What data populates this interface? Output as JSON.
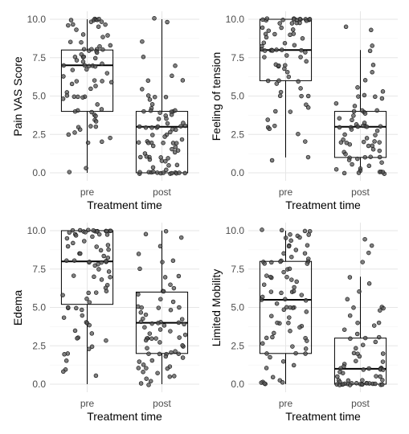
{
  "colors": {
    "background": "#ffffff",
    "grid_major": "#e6e6e6",
    "grid_minor": "#f2f2f2",
    "box_line": "#000000",
    "point_fill": "#555555",
    "point_stroke": "#1a1a1a"
  },
  "chart_data": [
    {
      "type": "boxplot",
      "xlabel": "Treatment time",
      "ylabel": "Pain VAS Score",
      "categories": [
        "pre",
        "post"
      ],
      "ylim": [
        0,
        10
      ],
      "yticks": [
        "0.0",
        "2.5",
        "5.0",
        "7.5",
        "10.0"
      ],
      "boxes": [
        {
          "category": "pre",
          "min": 0,
          "q1": 4,
          "median": 7,
          "q3": 8,
          "max": 10
        },
        {
          "category": "post",
          "min": 0,
          "q1": 0,
          "median": 3,
          "q3": 4,
          "max": 10
        }
      ],
      "points": [
        [
          10,
          10,
          10,
          10,
          10,
          10,
          9.8,
          9.8,
          9.7,
          9.7,
          9.6,
          9.5,
          9.3,
          9.0,
          9.0,
          8.8,
          8.5,
          8.5,
          8.3,
          8.2,
          8.1,
          8.0,
          8.0,
          8.0,
          8.0,
          7.9,
          7.8,
          7.7,
          7.6,
          7.5,
          7.5,
          7.4,
          7.3,
          7.2,
          7.1,
          7.0,
          7.0,
          7.0,
          7.0,
          6.9,
          6.8,
          6.7,
          6.5,
          6.3,
          6.0,
          6.0,
          6.0,
          5.9,
          5.8,
          5.7,
          5.5,
          5.3,
          5.0,
          5.0,
          5.0,
          5.0,
          4.9,
          4.8,
          4.5,
          4.2,
          4.0,
          4.0,
          4.0,
          3.8,
          3.7,
          3.5,
          3.3,
          3.0,
          3.0,
          3.0,
          2.8,
          2.6,
          2.5,
          2.3,
          2.0,
          2.0,
          0.3,
          0.1
        ],
        [
          10,
          9.8,
          8.5,
          7.5,
          7.0,
          6.3,
          6.0,
          6.0,
          5.5,
          5.0,
          5.0,
          5.0,
          4.8,
          4.5,
          4.2,
          4.0,
          4.0,
          4.0,
          4.0,
          4.0,
          3.9,
          3.8,
          3.7,
          3.5,
          3.5,
          3.3,
          3.2,
          3.0,
          3.0,
          3.0,
          3.0,
          3.0,
          3.0,
          3.0,
          2.9,
          2.8,
          2.7,
          2.5,
          2.5,
          2.3,
          2.2,
          2.0,
          2.0,
          2.0,
          2.0,
          2.0,
          2.0,
          1.9,
          1.8,
          1.7,
          1.5,
          1.5,
          1.3,
          1.2,
          1.0,
          1.0,
          1.0,
          1.0,
          1.0,
          0.9,
          0.8,
          0.7,
          0.5,
          0.5,
          0.3,
          0.2,
          0,
          0,
          0,
          0,
          0,
          0,
          0,
          0,
          0,
          0,
          0,
          0,
          0,
          0
        ]
      ]
    },
    {
      "type": "boxplot",
      "xlabel": "Treatment time",
      "ylabel": "Feeling of tension",
      "categories": [
        "pre",
        "post"
      ],
      "ylim": [
        0,
        10
      ],
      "yticks": [
        "0.0",
        "2.5",
        "5.0",
        "7.5",
        "10.0"
      ],
      "boxes": [
        {
          "category": "pre",
          "min": 1,
          "q1": 6,
          "median": 8,
          "q3": 10,
          "max": 10
        },
        {
          "category": "post",
          "min": 0,
          "q1": 1,
          "median": 3,
          "q3": 4,
          "max": 8
        }
      ],
      "points": [
        [
          10,
          10,
          10,
          10,
          10,
          10,
          10,
          10,
          10,
          10,
          10,
          10,
          9.9,
          9.9,
          9.8,
          9.8,
          9.7,
          9.7,
          9.5,
          9.5,
          9.3,
          9.2,
          9.0,
          9.0,
          9.0,
          9.0,
          8.8,
          8.7,
          8.5,
          8.5,
          8.3,
          8.2,
          8.0,
          8.0,
          8.0,
          8.0,
          8.0,
          8.0,
          8.0,
          7.9,
          7.8,
          7.7,
          7.5,
          7.5,
          7.3,
          7.0,
          7.0,
          7.0,
          7.0,
          6.8,
          6.5,
          6.3,
          6.0,
          6.0,
          6.0,
          5.8,
          5.5,
          5.3,
          5.0,
          5.0,
          5.0,
          4.5,
          4.2,
          4.0,
          4.0,
          3.5,
          3.0,
          3.0,
          2.8,
          2.5,
          2.0,
          1.0,
          0.8
        ],
        [
          9.5,
          9.3,
          8.3,
          8.0,
          7.0,
          6.5,
          6.0,
          5.5,
          5.3,
          5.0,
          5.0,
          5.0,
          4.8,
          4.5,
          4.3,
          4.0,
          4.0,
          4.0,
          4.0,
          3.8,
          3.7,
          3.5,
          3.5,
          3.3,
          3.2,
          3.0,
          3.0,
          3.0,
          3.0,
          3.0,
          3.0,
          3.0,
          2.8,
          2.7,
          2.5,
          2.5,
          2.3,
          2.2,
          2.0,
          2.0,
          2.0,
          2.0,
          2.0,
          1.9,
          1.8,
          1.7,
          1.5,
          1.5,
          1.3,
          1.2,
          1.0,
          1.0,
          1.0,
          1.0,
          0.9,
          0.8,
          0.7,
          0.5,
          0.5,
          0.3,
          0.2,
          0.2,
          0.1,
          0,
          0,
          0,
          0,
          0
        ]
      ]
    },
    {
      "type": "boxplot",
      "xlabel": "Treatment time",
      "ylabel": "Edema",
      "categories": [
        "pre",
        "post"
      ],
      "ylim": [
        0,
        10
      ],
      "yticks": [
        "0.0",
        "2.5",
        "5.0",
        "7.5",
        "10.0"
      ],
      "boxes": [
        {
          "category": "pre",
          "min": 0,
          "q1": 5.2,
          "median": 8,
          "q3": 10,
          "max": 10
        },
        {
          "category": "post",
          "min": 0,
          "q1": 2,
          "median": 4,
          "q3": 6,
          "max": 10
        }
      ],
      "points": [
        [
          10,
          10,
          10,
          10,
          10,
          10,
          10,
          10,
          10,
          10,
          10,
          10,
          9.9,
          9.9,
          9.8,
          9.8,
          9.7,
          9.7,
          9.6,
          9.5,
          9.3,
          9.2,
          9.0,
          9.0,
          9.0,
          8.8,
          8.7,
          8.5,
          8.5,
          8.3,
          8.2,
          8.0,
          8.0,
          8.0,
          8.0,
          8.0,
          8.0,
          7.9,
          7.8,
          7.7,
          7.5,
          7.3,
          7.0,
          7.0,
          7.0,
          6.8,
          6.5,
          6.3,
          6.0,
          6.0,
          6.0,
          5.8,
          5.5,
          5.3,
          5.0,
          5.0,
          5.0,
          4.8,
          4.5,
          4.3,
          4.0,
          4.0,
          3.8,
          3.5,
          3.3,
          3.0,
          3.0,
          2.8,
          2.5,
          2.3,
          2.0,
          2.0,
          1.5,
          1.0,
          0.8,
          0.5
        ],
        [
          10,
          9.8,
          9.5,
          9.0,
          8.5,
          8.0,
          8.0,
          7.5,
          7.0,
          7.0,
          6.5,
          6.3,
          6.0,
          6.0,
          5.8,
          5.5,
          5.3,
          5.0,
          5.0,
          5.0,
          5.0,
          4.8,
          4.7,
          4.5,
          4.3,
          4.2,
          4.0,
          4.0,
          4.0,
          4.0,
          4.0,
          3.9,
          3.8,
          3.7,
          3.5,
          3.5,
          3.3,
          3.2,
          3.0,
          3.0,
          3.0,
          3.0,
          3.0,
          2.8,
          2.7,
          2.5,
          2.5,
          2.3,
          2.2,
          2.0,
          2.0,
          2.0,
          2.0,
          2.0,
          1.8,
          1.7,
          1.5,
          1.5,
          1.3,
          1.2,
          1.0,
          1.0,
          1.0,
          0.8,
          0.7,
          0.5,
          0.5,
          0.3,
          0.2,
          0.1,
          0
        ]
      ]
    },
    {
      "type": "boxplot",
      "xlabel": "Treatment time",
      "ylabel": "Limited Mobility",
      "categories": [
        "pre",
        "post"
      ],
      "ylim": [
        0,
        10
      ],
      "yticks": [
        "0.0",
        "2.5",
        "5.0",
        "7.5",
        "10.0"
      ],
      "boxes": [
        {
          "category": "pre",
          "min": 0,
          "q1": 2,
          "median": 5.5,
          "q3": 8,
          "max": 10
        },
        {
          "category": "post",
          "min": 0,
          "q1": 0,
          "median": 1,
          "q3": 3,
          "max": 7
        }
      ],
      "points": [
        [
          10,
          10,
          10,
          10,
          9.8,
          9.8,
          9.7,
          9.5,
          9.5,
          9.3,
          9.0,
          9.0,
          9.0,
          8.8,
          8.5,
          8.5,
          8.3,
          8.2,
          8.0,
          8.0,
          8.0,
          8.0,
          8.0,
          7.9,
          7.8,
          7.5,
          7.5,
          7.3,
          7.0,
          7.0,
          7.0,
          7.0,
          6.8,
          6.7,
          6.5,
          6.3,
          6.0,
          6.0,
          6.0,
          6.0,
          5.8,
          5.7,
          5.5,
          5.5,
          5.5,
          5.3,
          5.0,
          5.0,
          5.0,
          5.0,
          4.8,
          4.7,
          4.5,
          4.3,
          4.0,
          4.0,
          4.0,
          3.8,
          3.7,
          3.5,
          3.3,
          3.0,
          3.0,
          3.0,
          2.8,
          2.7,
          2.5,
          2.3,
          2.0,
          2.0,
          2.0,
          1.8,
          1.5,
          1.2,
          1.0,
          0.5,
          0.3,
          0.2,
          0.1,
          0.1,
          0,
          0
        ],
        [
          9.5,
          9.0,
          8.5,
          8.0,
          7.0,
          6.5,
          6.0,
          5.5,
          5.0,
          5.0,
          5.0,
          4.8,
          4.5,
          4.0,
          4.0,
          3.8,
          3.5,
          3.3,
          3.0,
          3.0,
          3.0,
          2.8,
          2.5,
          2.3,
          2.0,
          2.0,
          2.0,
          1.8,
          1.5,
          1.5,
          1.3,
          1.2,
          1.0,
          1.0,
          1.0,
          1.0,
          1.0,
          1.0,
          0.9,
          0.8,
          0.7,
          0.5,
          0.5,
          0.5,
          0.3,
          0.3,
          0.2,
          0.2,
          0.1,
          0.1,
          0,
          0,
          0,
          0,
          0,
          0,
          0,
          0,
          0,
          0,
          0,
          0,
          0,
          0,
          0,
          0,
          0,
          0
        ]
      ]
    }
  ]
}
